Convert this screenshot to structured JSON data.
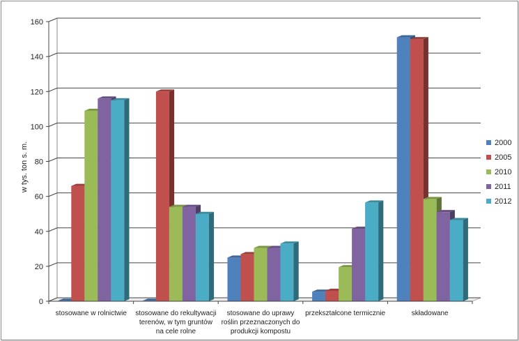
{
  "chart_data": {
    "type": "bar",
    "title": "",
    "xlabel": "",
    "ylabel": "w tys. ton  s. m.",
    "ylim": [
      0,
      160
    ],
    "yticks": [
      0,
      20,
      40,
      60,
      80,
      100,
      120,
      140,
      160
    ],
    "grid": true,
    "legend_position": "right",
    "categories": [
      [
        "stosowane w rolnictwie"
      ],
      [
        "stosowane do rekultywacji",
        "terenów, w tym gruntów",
        "na cele rolne"
      ],
      [
        "stosowane do uprawy",
        "roślin przeznaczonych do",
        "produkcji kompostu"
      ],
      [
        "przekształcone termicznie"
      ],
      [
        "składowane"
      ]
    ],
    "series": [
      {
        "name": "2000",
        "color": "#4f81bd",
        "values": [
          0.3,
          0.3,
          25,
          5.5,
          151
        ]
      },
      {
        "name": "2005",
        "color": "#c0504d",
        "values": [
          66,
          120,
          27,
          6,
          150
        ]
      },
      {
        "name": "2010",
        "color": "#9bbb59",
        "values": [
          109,
          54,
          30.5,
          19.5,
          58.5
        ]
      },
      {
        "name": "2011",
        "color": "#8064a2",
        "values": [
          116,
          54,
          30.5,
          41.5,
          51
        ]
      },
      {
        "name": "2012",
        "color": "#4bacc6",
        "values": [
          115,
          50,
          33,
          56.5,
          46.5
        ]
      }
    ]
  }
}
